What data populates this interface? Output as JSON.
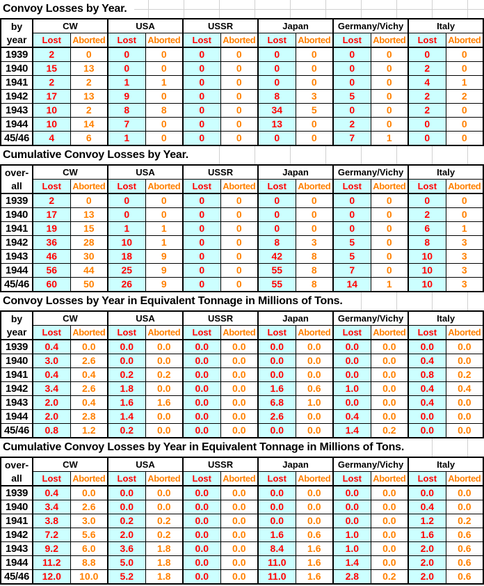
{
  "colors": {
    "lost_cell_background": "#CCFFFF",
    "lost_text": "#FF0000",
    "aborted_text": "#FF8000",
    "border": "#000000",
    "gridline": "#D0D0D0",
    "header_text": "#000000"
  },
  "groups": [
    "CW",
    "USA",
    "USSR",
    "Japan",
    "Germany/Vichy",
    "Italy"
  ],
  "subheaders": [
    "Lost",
    "Aborted"
  ],
  "tables": [
    {
      "title": "Convoy Losses by Year.",
      "row_label": [
        "by",
        "year"
      ],
      "rows": [
        {
          "year": "1939",
          "values": [
            "2",
            "0",
            "0",
            "0",
            "0",
            "0",
            "0",
            "0",
            "0",
            "0",
            "0",
            "0"
          ]
        },
        {
          "year": "1940",
          "values": [
            "15",
            "13",
            "0",
            "0",
            "0",
            "0",
            "0",
            "0",
            "0",
            "0",
            "2",
            "0"
          ]
        },
        {
          "year": "1941",
          "values": [
            "2",
            "2",
            "1",
            "1",
            "0",
            "0",
            "0",
            "0",
            "0",
            "0",
            "4",
            "1"
          ]
        },
        {
          "year": "1942",
          "values": [
            "17",
            "13",
            "9",
            "0",
            "0",
            "0",
            "8",
            "3",
            "5",
            "0",
            "2",
            "2"
          ]
        },
        {
          "year": "1943",
          "values": [
            "10",
            "2",
            "8",
            "8",
            "0",
            "0",
            "34",
            "5",
            "0",
            "0",
            "2",
            "0"
          ]
        },
        {
          "year": "1944",
          "values": [
            "10",
            "14",
            "7",
            "0",
            "0",
            "0",
            "13",
            "0",
            "2",
            "0",
            "0",
            "0"
          ]
        },
        {
          "year": "45/46",
          "values": [
            "4",
            "6",
            "1",
            "0",
            "0",
            "0",
            "0",
            "0",
            "7",
            "1",
            "0",
            "0"
          ]
        }
      ]
    },
    {
      "title": "Cumulative Convoy Losses by Year.",
      "row_label": [
        "over-",
        "all"
      ],
      "rows": [
        {
          "year": "1939",
          "values": [
            "2",
            "0",
            "0",
            "0",
            "0",
            "0",
            "0",
            "0",
            "0",
            "0",
            "0",
            "0"
          ]
        },
        {
          "year": "1940",
          "values": [
            "17",
            "13",
            "0",
            "0",
            "0",
            "0",
            "0",
            "0",
            "0",
            "0",
            "2",
            "0"
          ]
        },
        {
          "year": "1941",
          "values": [
            "19",
            "15",
            "1",
            "1",
            "0",
            "0",
            "0",
            "0",
            "0",
            "0",
            "6",
            "1"
          ]
        },
        {
          "year": "1942",
          "values": [
            "36",
            "28",
            "10",
            "1",
            "0",
            "0",
            "8",
            "3",
            "5",
            "0",
            "8",
            "3"
          ]
        },
        {
          "year": "1943",
          "values": [
            "46",
            "30",
            "18",
            "9",
            "0",
            "0",
            "42",
            "8",
            "5",
            "0",
            "10",
            "3"
          ]
        },
        {
          "year": "1944",
          "values": [
            "56",
            "44",
            "25",
            "9",
            "0",
            "0",
            "55",
            "8",
            "7",
            "0",
            "10",
            "3"
          ]
        },
        {
          "year": "45/46",
          "values": [
            "60",
            "50",
            "26",
            "9",
            "0",
            "0",
            "55",
            "8",
            "14",
            "1",
            "10",
            "3"
          ]
        }
      ]
    },
    {
      "title": "Convoy Losses by Year in Equivalent Tonnage in Millions of Tons.",
      "row_label": [
        "by",
        "year"
      ],
      "rows": [
        {
          "year": "1939",
          "values": [
            "0.4",
            "0.0",
            "0.0",
            "0.0",
            "0.0",
            "0.0",
            "0.0",
            "0.0",
            "0.0",
            "0.0",
            "0.0",
            "0.0"
          ]
        },
        {
          "year": "1940",
          "values": [
            "3.0",
            "2.6",
            "0.0",
            "0.0",
            "0.0",
            "0.0",
            "0.0",
            "0.0",
            "0.0",
            "0.0",
            "0.4",
            "0.0"
          ]
        },
        {
          "year": "1941",
          "values": [
            "0.4",
            "0.4",
            "0.2",
            "0.2",
            "0.0",
            "0.0",
            "0.0",
            "0.0",
            "0.0",
            "0.0",
            "0.8",
            "0.2"
          ]
        },
        {
          "year": "1942",
          "values": [
            "3.4",
            "2.6",
            "1.8",
            "0.0",
            "0.0",
            "0.0",
            "1.6",
            "0.6",
            "1.0",
            "0.0",
            "0.4",
            "0.4"
          ]
        },
        {
          "year": "1943",
          "values": [
            "2.0",
            "0.4",
            "1.6",
            "1.6",
            "0.0",
            "0.0",
            "6.8",
            "1.0",
            "0.0",
            "0.0",
            "0.4",
            "0.0"
          ]
        },
        {
          "year": "1944",
          "values": [
            "2.0",
            "2.8",
            "1.4",
            "0.0",
            "0.0",
            "0.0",
            "2.6",
            "0.0",
            "0.4",
            "0.0",
            "0.0",
            "0.0"
          ]
        },
        {
          "year": "45/46",
          "values": [
            "0.8",
            "1.2",
            "0.2",
            "0.0",
            "0.0",
            "0.0",
            "0.0",
            "0.0",
            "1.4",
            "0.2",
            "0.0",
            "0.0"
          ]
        }
      ]
    },
    {
      "title": "Cumulative Convoy Losses by Year in Equivalent Tonnage in Millions of Tons.",
      "row_label": [
        "over-",
        "all"
      ],
      "rows": [
        {
          "year": "1939",
          "values": [
            "0.4",
            "0.0",
            "0.0",
            "0.0",
            "0.0",
            "0.0",
            "0.0",
            "0.0",
            "0.0",
            "0.0",
            "0.0",
            "0.0"
          ]
        },
        {
          "year": "1940",
          "values": [
            "3.4",
            "2.6",
            "0.0",
            "0.0",
            "0.0",
            "0.0",
            "0.0",
            "0.0",
            "0.0",
            "0.0",
            "0.4",
            "0.0"
          ]
        },
        {
          "year": "1941",
          "values": [
            "3.8",
            "3.0",
            "0.2",
            "0.2",
            "0.0",
            "0.0",
            "0.0",
            "0.0",
            "0.0",
            "0.0",
            "1.2",
            "0.2"
          ]
        },
        {
          "year": "1942",
          "values": [
            "7.2",
            "5.6",
            "2.0",
            "0.2",
            "0.0",
            "0.0",
            "1.6",
            "0.6",
            "1.0",
            "0.0",
            "1.6",
            "0.6"
          ]
        },
        {
          "year": "1943",
          "values": [
            "9.2",
            "6.0",
            "3.6",
            "1.8",
            "0.0",
            "0.0",
            "8.4",
            "1.6",
            "1.0",
            "0.0",
            "2.0",
            "0.6"
          ]
        },
        {
          "year": "1944",
          "values": [
            "11.2",
            "8.8",
            "5.0",
            "1.8",
            "0.0",
            "0.0",
            "11.0",
            "1.6",
            "1.4",
            "0.0",
            "2.0",
            "0.6"
          ]
        },
        {
          "year": "45/46",
          "values": [
            "12.0",
            "10.0",
            "5.2",
            "1.8",
            "0.0",
            "0.0",
            "11.0",
            "1.6",
            "2.8",
            "0.2",
            "2.0",
            "0.6"
          ]
        }
      ]
    }
  ]
}
